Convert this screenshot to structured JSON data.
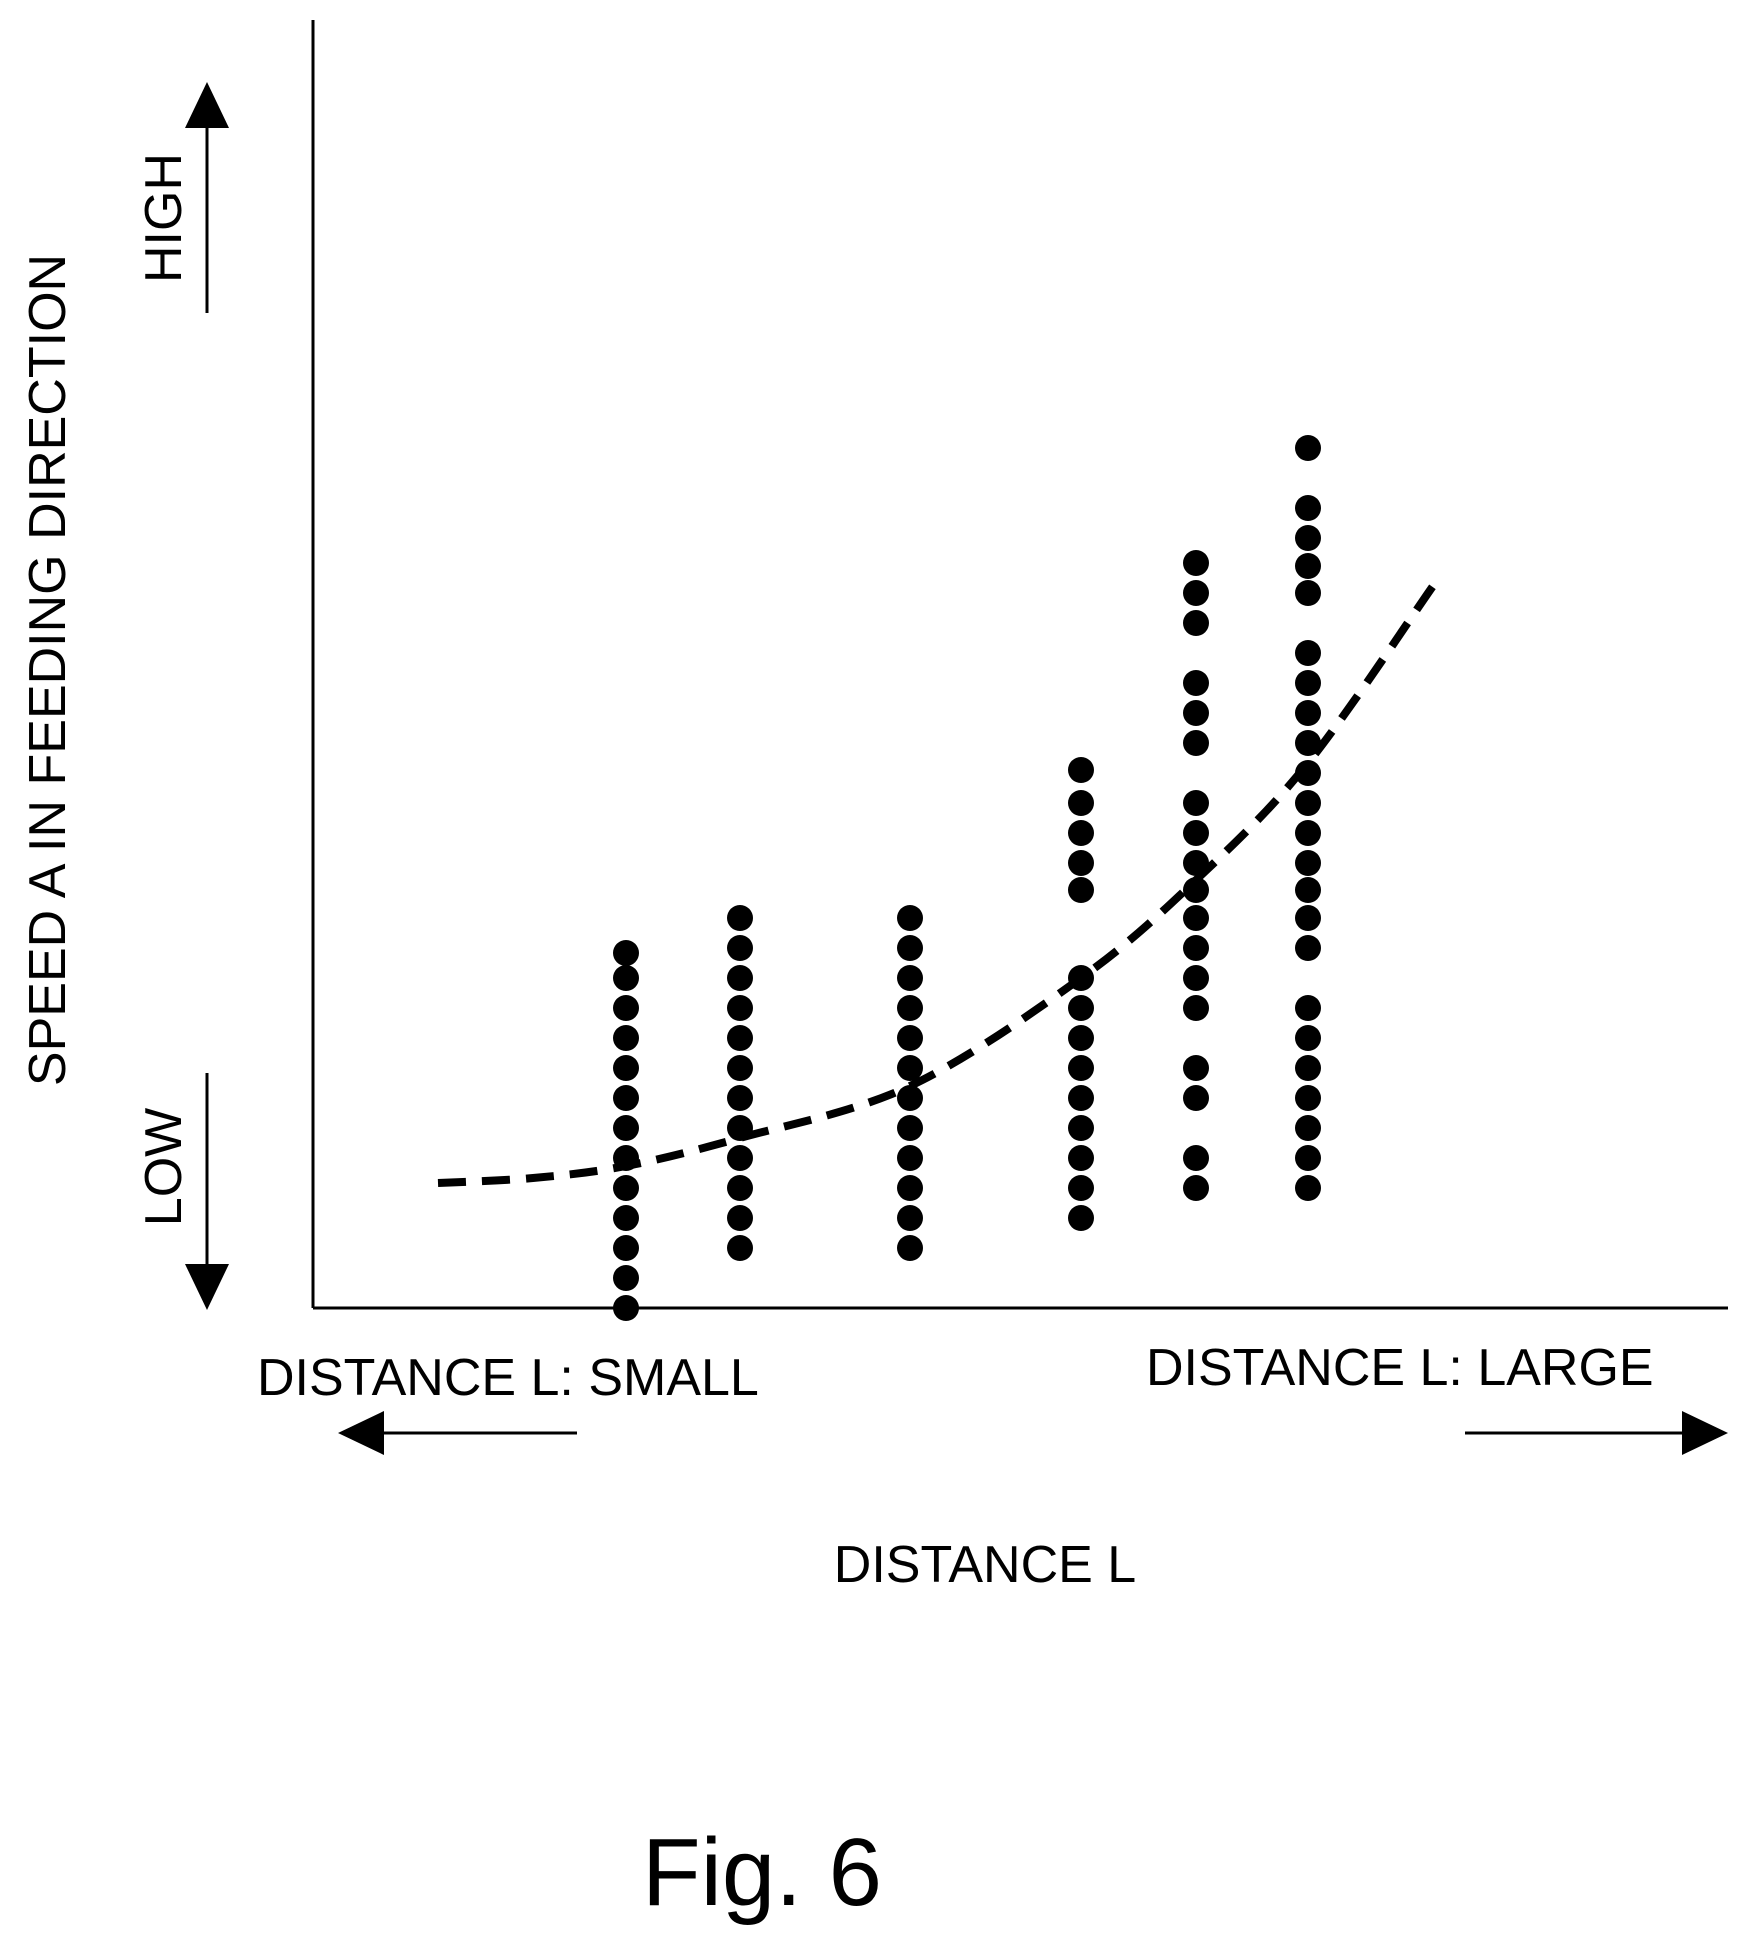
{
  "figure": {
    "caption": "Fig. 6"
  },
  "chart_data": {
    "type": "scatter",
    "ylabel": "SPEED A IN FEEDING DIRECTION",
    "xlabel": "DISTANCE L",
    "y_high_label": "HIGH",
    "y_low_label": "LOW",
    "x_small_label": "DISTANCE L: SMALL",
    "x_large_label": "DISTANCE L: LARGE",
    "xlim": [
      0,
      1140
    ],
    "ylim": [
      0,
      1040
    ],
    "grid": false,
    "legend": "none",
    "tick_labels": "none",
    "series": [
      {
        "points": [
          [
            313,
            355
          ],
          [
            313,
            330
          ],
          [
            313,
            300
          ],
          [
            313,
            270
          ],
          [
            313,
            240
          ],
          [
            313,
            210
          ],
          [
            313,
            180
          ],
          [
            313,
            150
          ],
          [
            313,
            120
          ],
          [
            313,
            90
          ],
          [
            313,
            60
          ],
          [
            313,
            30
          ],
          [
            313,
            0
          ],
          [
            427,
            390
          ],
          [
            427,
            360
          ],
          [
            427,
            330
          ],
          [
            427,
            300
          ],
          [
            427,
            270
          ],
          [
            427,
            240
          ],
          [
            427,
            210
          ],
          [
            427,
            180
          ],
          [
            427,
            150
          ],
          [
            427,
            120
          ],
          [
            427,
            90
          ],
          [
            427,
            60
          ],
          [
            597,
            390
          ],
          [
            597,
            360
          ],
          [
            597,
            330
          ],
          [
            597,
            300
          ],
          [
            597,
            270
          ],
          [
            597,
            240
          ],
          [
            597,
            210
          ],
          [
            597,
            180
          ],
          [
            597,
            150
          ],
          [
            597,
            120
          ],
          [
            597,
            90
          ],
          [
            597,
            60
          ],
          [
            768,
            538
          ],
          [
            768,
            505
          ],
          [
            768,
            475
          ],
          [
            768,
            445
          ],
          [
            768,
            418
          ],
          [
            768,
            330
          ],
          [
            768,
            300
          ],
          [
            768,
            270
          ],
          [
            768,
            240
          ],
          [
            768,
            210
          ],
          [
            768,
            180
          ],
          [
            768,
            150
          ],
          [
            768,
            120
          ],
          [
            768,
            90
          ],
          [
            883,
            745
          ],
          [
            883,
            715
          ],
          [
            883,
            685
          ],
          [
            883,
            625
          ],
          [
            883,
            595
          ],
          [
            883,
            565
          ],
          [
            883,
            505
          ],
          [
            883,
            475
          ],
          [
            883,
            445
          ],
          [
            883,
            418
          ],
          [
            883,
            390
          ],
          [
            883,
            360
          ],
          [
            883,
            330
          ],
          [
            883,
            300
          ],
          [
            883,
            240
          ],
          [
            883,
            210
          ],
          [
            883,
            150
          ],
          [
            883,
            120
          ],
          [
            995,
            860
          ],
          [
            995,
            800
          ],
          [
            995,
            770
          ],
          [
            995,
            742
          ],
          [
            995,
            715
          ],
          [
            995,
            655
          ],
          [
            995,
            625
          ],
          [
            995,
            595
          ],
          [
            995,
            565
          ],
          [
            995,
            535
          ],
          [
            995,
            505
          ],
          [
            995,
            475
          ],
          [
            995,
            445
          ],
          [
            995,
            418
          ],
          [
            995,
            390
          ],
          [
            995,
            360
          ],
          [
            995,
            300
          ],
          [
            995,
            270
          ],
          [
            995,
            240
          ],
          [
            995,
            210
          ],
          [
            995,
            180
          ],
          [
            995,
            150
          ],
          [
            995,
            120
          ]
        ]
      },
      {
        "style": "dashed-curve",
        "x": [
          125,
          220,
          313,
          427,
          597,
          768,
          883,
          995,
          1120
        ],
        "y": [
          125,
          130,
          142,
          170,
          222,
          330,
          428,
          545,
          722
        ]
      }
    ]
  }
}
